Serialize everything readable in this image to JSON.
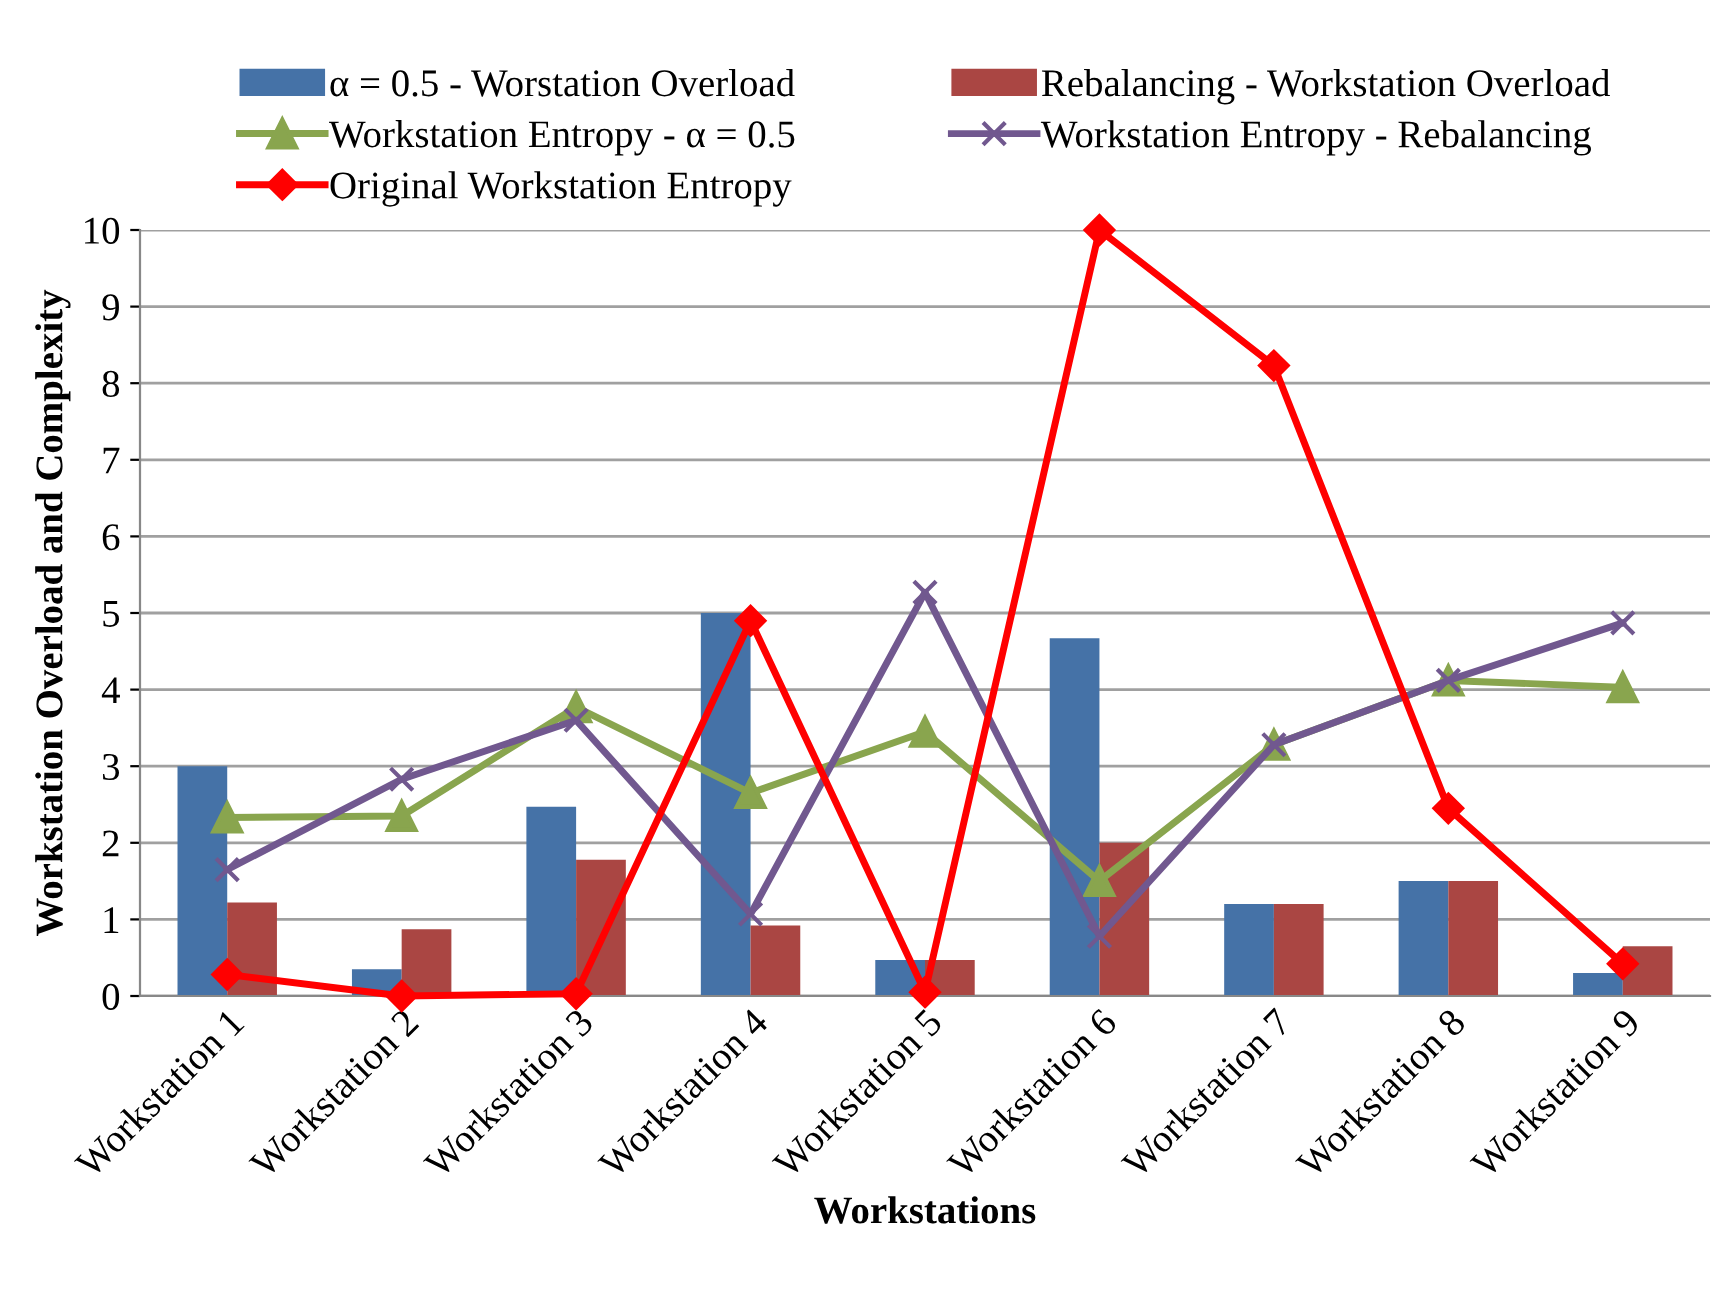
{
  "chart_data": {
    "type": "bar",
    "xlabel": "Workstations",
    "ylabel": "Workstation Overload and Complexity",
    "categories": [
      "Workstation 1",
      "Workstation 2",
      "Workstation 3",
      "Workstation 4",
      "Workstation 5",
      "Workstation 6",
      "Workstation 7",
      "Workstation 8",
      "Workstation 9"
    ],
    "series": [
      {
        "name": "α = 0.5 - Worstation Overload",
        "color": "#4572a7",
        "values": [
          3.0,
          0.35,
          2.47,
          5.0,
          0.47,
          4.67,
          1.2,
          1.5,
          0.3
        ]
      },
      {
        "name": "Rebalancing - Workstation Overload",
        "color": "#aa4643",
        "values": [
          1.22,
          0.87,
          1.78,
          0.92,
          0.47,
          2.0,
          1.2,
          1.5,
          0.65
        ]
      },
      {
        "name": "Workstation Entropy - α = 0.5",
        "type": "line",
        "marker": "triangle",
        "color": "#89a54e",
        "values": [
          2.33,
          2.35,
          3.77,
          2.65,
          3.45,
          1.5,
          3.28,
          4.12,
          4.03
        ]
      },
      {
        "name": "Workstation Entropy - Rebalancing",
        "type": "line",
        "marker": "cross",
        "color": "#71588f",
        "values": [
          1.65,
          2.83,
          3.6,
          1.07,
          5.27,
          0.78,
          3.28,
          4.12,
          4.87
        ]
      },
      {
        "name": "Original Workstation Entropy",
        "type": "line",
        "marker": "diamond",
        "color": "#ff0000",
        "values": [
          0.28,
          0.0,
          0.03,
          4.9,
          0.05,
          10.0,
          8.23,
          2.45,
          0.42
        ]
      }
    ],
    "ylim": [
      0,
      10
    ],
    "yticks": [
      0,
      1,
      2,
      3,
      4,
      5,
      6,
      7,
      8,
      9,
      10
    ],
    "grid": "y",
    "legend": "top"
  }
}
